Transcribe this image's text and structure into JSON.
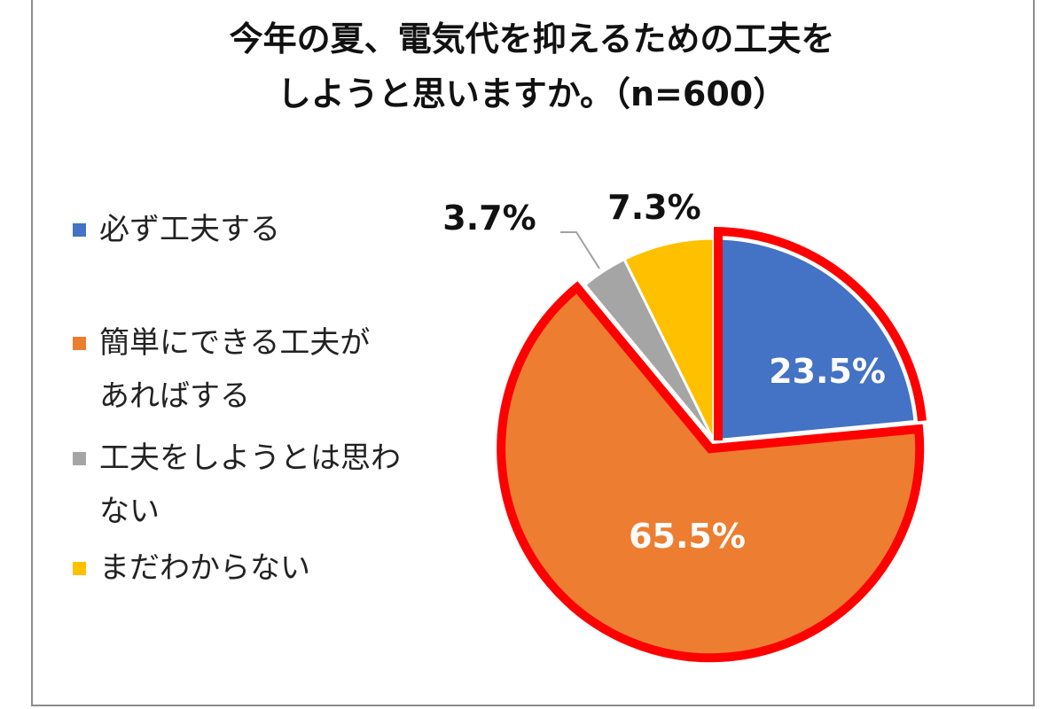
{
  "chart_data": {
    "type": "pie",
    "title_lines": [
      "今年の夏、電気代を抑えるための工夫を",
      "しようと思いますか。（n=600）"
    ],
    "slices": [
      {
        "label": "必ず工夫する",
        "value": 23.5,
        "display": "23.5%",
        "color": "#4472C4"
      },
      {
        "label": "簡単にできる工夫があればする",
        "label_lines": [
          "簡単にできる工夫が",
          "あればする"
        ],
        "value": 65.5,
        "display": "65.5%",
        "color": "#ED7D31",
        "highlighted": true
      },
      {
        "label": "工夫をしようとは思わない",
        "label_lines": [
          "工夫をしようとは思わ",
          "ない"
        ],
        "value": 3.7,
        "display": "3.7%",
        "color": "#A5A5A5"
      },
      {
        "label": "まだわからない",
        "value": 7.3,
        "display": "7.3%",
        "color": "#FFC000"
      }
    ],
    "legend_placement": "left",
    "highlight_color": "#FF0000"
  }
}
